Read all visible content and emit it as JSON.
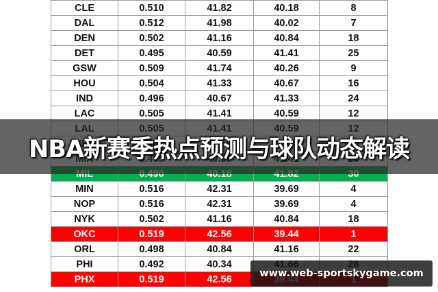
{
  "table": {
    "rows": [
      {
        "team": "CLE",
        "v1": "0.510",
        "v2": "41.82",
        "v3": "40.18",
        "rank": "8",
        "style": ""
      },
      {
        "team": "DAL",
        "v1": "0.512",
        "v2": "41.98",
        "v3": "40.02",
        "rank": "7",
        "style": ""
      },
      {
        "team": "DEN",
        "v1": "0.502",
        "v2": "41.16",
        "v3": "40.84",
        "rank": "18",
        "style": ""
      },
      {
        "team": "DET",
        "v1": "0.495",
        "v2": "40.59",
        "v3": "41.41",
        "rank": "25",
        "style": ""
      },
      {
        "team": "GSW",
        "v1": "0.509",
        "v2": "41.74",
        "v3": "40.26",
        "rank": "9",
        "style": ""
      },
      {
        "team": "HOU",
        "v1": "0.504",
        "v2": "41.33",
        "v3": "40.67",
        "rank": "16",
        "style": ""
      },
      {
        "team": "IND",
        "v1": "0.496",
        "v2": "40.67",
        "v3": "41.33",
        "rank": "24",
        "style": ""
      },
      {
        "team": "LAC",
        "v1": "0.505",
        "v2": "41.41",
        "v3": "40.59",
        "rank": "12",
        "style": ""
      },
      {
        "team": "LAL",
        "v1": "0.505",
        "v2": "41.41",
        "v3": "40.59",
        "rank": "12",
        "style": ""
      },
      {
        "team": "MEM",
        "v1": "0.495",
        "v2": "40.59",
        "v3": "41.41",
        "rank": "25",
        "style": ""
      },
      {
        "team": "MIA",
        "v1": "0.495",
        "v2": "40.59",
        "v3": "41.41",
        "rank": "25",
        "style": ""
      },
      {
        "team": "MIL",
        "v1": "0.490",
        "v2": "40.18",
        "v3": "41.82",
        "rank": "30",
        "style": "green"
      },
      {
        "team": "MIN",
        "v1": "0.516",
        "v2": "42.31",
        "v3": "39.69",
        "rank": "4",
        "style": ""
      },
      {
        "team": "NOP",
        "v1": "0.516",
        "v2": "42.31",
        "v3": "39.69",
        "rank": "4",
        "style": ""
      },
      {
        "team": "NYK",
        "v1": "0.502",
        "v2": "41.16",
        "v3": "40.84",
        "rank": "18",
        "style": ""
      },
      {
        "team": "OKC",
        "v1": "0.519",
        "v2": "42.56",
        "v3": "39.44",
        "rank": "1",
        "style": "red"
      },
      {
        "team": "ORL",
        "v1": "0.498",
        "v2": "40.84",
        "v3": "41.16",
        "rank": "22",
        "style": ""
      },
      {
        "team": "PHI",
        "v1": "0.492",
        "v2": "40.34",
        "v3": "41.66",
        "rank": "28",
        "style": ""
      },
      {
        "team": "PHX",
        "v1": "0.519",
        "v2": "42.56",
        "v3": "39.44",
        "rank": "1",
        "style": "red"
      }
    ]
  },
  "banner": {
    "title": "NBA新赛季热点预测与球队动态解读"
  },
  "watermark": {
    "text": "www.web-sportskygame.com"
  }
}
